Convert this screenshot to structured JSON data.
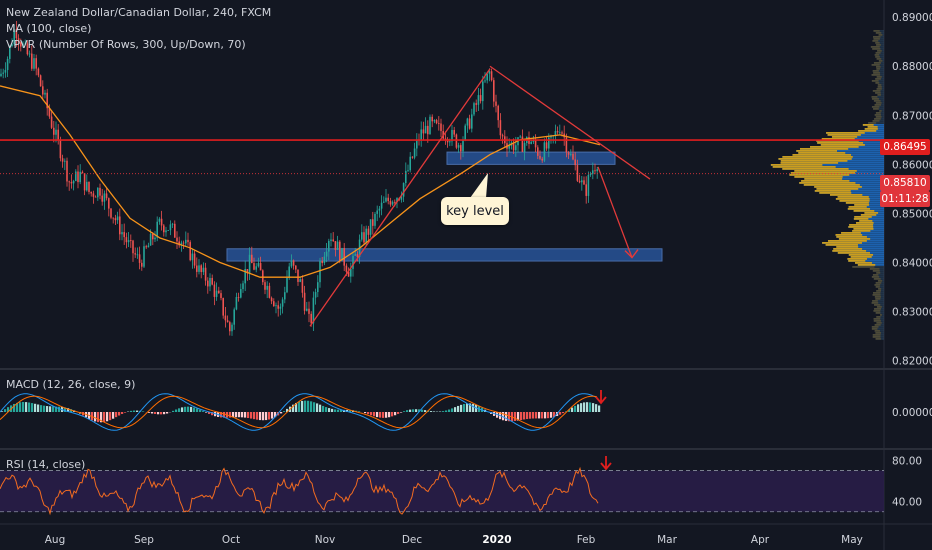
{
  "header": {
    "title": "New Zealand Dollar/Canadian Dollar, 240, FXCM",
    "ma": "MA (100, close)",
    "vpvr": "VPVR (Number Of Rows, 300, Up/Down, 70)",
    "macd": "MACD (12, 26, close, 9)",
    "rsi": "RSI (14, close)"
  },
  "annotation": {
    "key_level": "key level"
  },
  "badges": {
    "level_line": "0.86495",
    "last_price": "0.85810",
    "countdown": "01:11:28"
  },
  "colors": {
    "background": "#131722",
    "up_candle": "#26a69a",
    "down_candle": "#ef5350",
    "ma": "#f7931a",
    "level_line": "#e01e1e",
    "zone_fill": "#2a5ca8",
    "vp_up": "#d4a017",
    "vp_value_area": "#1f6fc5",
    "rsi": "#f26b21",
    "macd_line": "#2196f3",
    "signal_line": "#ff6d00"
  },
  "chart_data": [
    {
      "type": "candlestick",
      "title": "New Zealand Dollar/Canadian Dollar, 240, FXCM",
      "x_ticks": [
        "Aug",
        "Sep",
        "Oct",
        "Nov",
        "Dec",
        "2020",
        "Feb",
        "Mar",
        "Apr",
        "May"
      ],
      "y_ticks": [
        "0.89000",
        "0.88000",
        "0.87000",
        "0.86000",
        "0.85000",
        "0.84000",
        "0.83000",
        "0.82000"
      ],
      "ylim": [
        0.8185,
        0.8935
      ],
      "price_path": [
        [
          0,
          0.878
        ],
        [
          8,
          0.882
        ],
        [
          15,
          0.888
        ],
        [
          25,
          0.883
        ],
        [
          35,
          0.88
        ],
        [
          45,
          0.873
        ],
        [
          55,
          0.866
        ],
        [
          62,
          0.862
        ],
        [
          70,
          0.856
        ],
        [
          80,
          0.858
        ],
        [
          90,
          0.854
        ],
        [
          100,
          0.855
        ],
        [
          110,
          0.851
        ],
        [
          120,
          0.847
        ],
        [
          130,
          0.843
        ],
        [
          140,
          0.84
        ],
        [
          150,
          0.844
        ],
        [
          160,
          0.848
        ],
        [
          170,
          0.847
        ],
        [
          180,
          0.845
        ],
        [
          190,
          0.842
        ],
        [
          200,
          0.838
        ],
        [
          210,
          0.836
        ],
        [
          220,
          0.832
        ],
        [
          230,
          0.826
        ],
        [
          240,
          0.836
        ],
        [
          250,
          0.84
        ],
        [
          260,
          0.838
        ],
        [
          270,
          0.834
        ],
        [
          280,
          0.83
        ],
        [
          290,
          0.84
        ],
        [
          300,
          0.836
        ],
        [
          310,
          0.827
        ],
        [
          320,
          0.84
        ],
        [
          330,
          0.846
        ],
        [
          340,
          0.842
        ],
        [
          350,
          0.838
        ],
        [
          360,
          0.844
        ],
        [
          370,
          0.847
        ],
        [
          380,
          0.851
        ],
        [
          390,
          0.853
        ],
        [
          400,
          0.854
        ],
        [
          410,
          0.86
        ],
        [
          420,
          0.866
        ],
        [
          430,
          0.868
        ],
        [
          440,
          0.867
        ],
        [
          450,
          0.866
        ],
        [
          460,
          0.864
        ],
        [
          470,
          0.869
        ],
        [
          480,
          0.874
        ],
        [
          490,
          0.879
        ],
        [
          500,
          0.866
        ],
        [
          510,
          0.864
        ],
        [
          520,
          0.864
        ],
        [
          530,
          0.865
        ],
        [
          540,
          0.862
        ],
        [
          550,
          0.864
        ],
        [
          560,
          0.868
        ],
        [
          570,
          0.862
        ],
        [
          580,
          0.857
        ],
        [
          585,
          0.854
        ],
        [
          590,
          0.858
        ],
        [
          598,
          0.861
        ]
      ],
      "ma_path": [
        [
          0,
          0.876
        ],
        [
          40,
          0.874
        ],
        [
          70,
          0.866
        ],
        [
          100,
          0.857
        ],
        [
          130,
          0.849
        ],
        [
          160,
          0.845
        ],
        [
          190,
          0.843
        ],
        [
          220,
          0.84
        ],
        [
          260,
          0.837
        ],
        [
          300,
          0.837
        ],
        [
          330,
          0.839
        ],
        [
          360,
          0.843
        ],
        [
          390,
          0.848
        ],
        [
          420,
          0.853
        ],
        [
          460,
          0.858
        ],
        [
          490,
          0.862
        ],
        [
          520,
          0.865
        ],
        [
          560,
          0.866
        ],
        [
          600,
          0.864
        ]
      ],
      "level_line": 0.86495,
      "last_price": 0.8581,
      "zones": [
        {
          "x": [
            447,
            615
          ],
          "y": [
            0.8625,
            0.86
          ]
        },
        {
          "x": [
            227,
            662
          ],
          "y": [
            0.8428,
            0.8403
          ]
        }
      ],
      "trendlines": [
        {
          "from": [
            310,
            0.827
          ],
          "to": [
            490,
            0.8795
          ]
        },
        {
          "from": [
            490,
            0.88
          ],
          "to": [
            650,
            0.857
          ]
        },
        {
          "from": [
            598,
            0.8595
          ],
          "to": [
            632,
            0.841
          ]
        }
      ]
    },
    {
      "type": "line",
      "title": "MACD (12, 26, close, 9)",
      "y_ticks": [
        "0.00000"
      ]
    },
    {
      "type": "line",
      "title": "RSI (14, close)",
      "y_ticks": [
        "80.00",
        "40.00"
      ],
      "ylim": [
        20,
        90
      ],
      "bands": [
        30,
        70
      ]
    }
  ]
}
